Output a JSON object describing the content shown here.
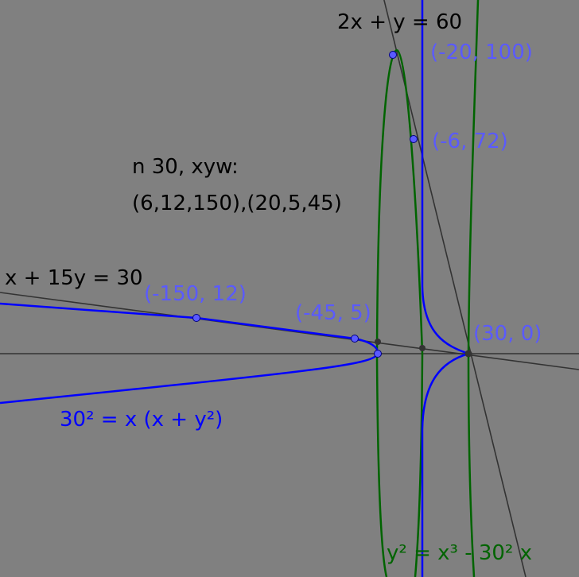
{
  "diagram": {
    "lines": {
      "line_2x": "2x + y = 60",
      "line_x15": "x + 15y = 30"
    },
    "curves": {
      "blue_curve": "30² = x (x + y²)",
      "green_curve": "y² = x³ - 30² x"
    },
    "note": {
      "line1": "n 30, xyw:",
      "line2": "(6,12,150),(20,5,45)"
    },
    "points": [
      {
        "id": "p-20-100",
        "label": "(-20, 100)"
      },
      {
        "id": "p-6-72",
        "label": "(-6, 72)"
      },
      {
        "id": "p-150-12",
        "label": "(-150, 12)"
      },
      {
        "id": "p-45-5",
        "label": "(-45, 5)"
      },
      {
        "id": "p-30-0",
        "label": "(30, 0)"
      }
    ],
    "colors": {
      "background": "#808080",
      "blue_curve": "#0000ff",
      "green_curve": "#006400",
      "point_fill": "#5a5aff",
      "label_blue": "#5a5aff",
      "line": "#333333"
    }
  }
}
